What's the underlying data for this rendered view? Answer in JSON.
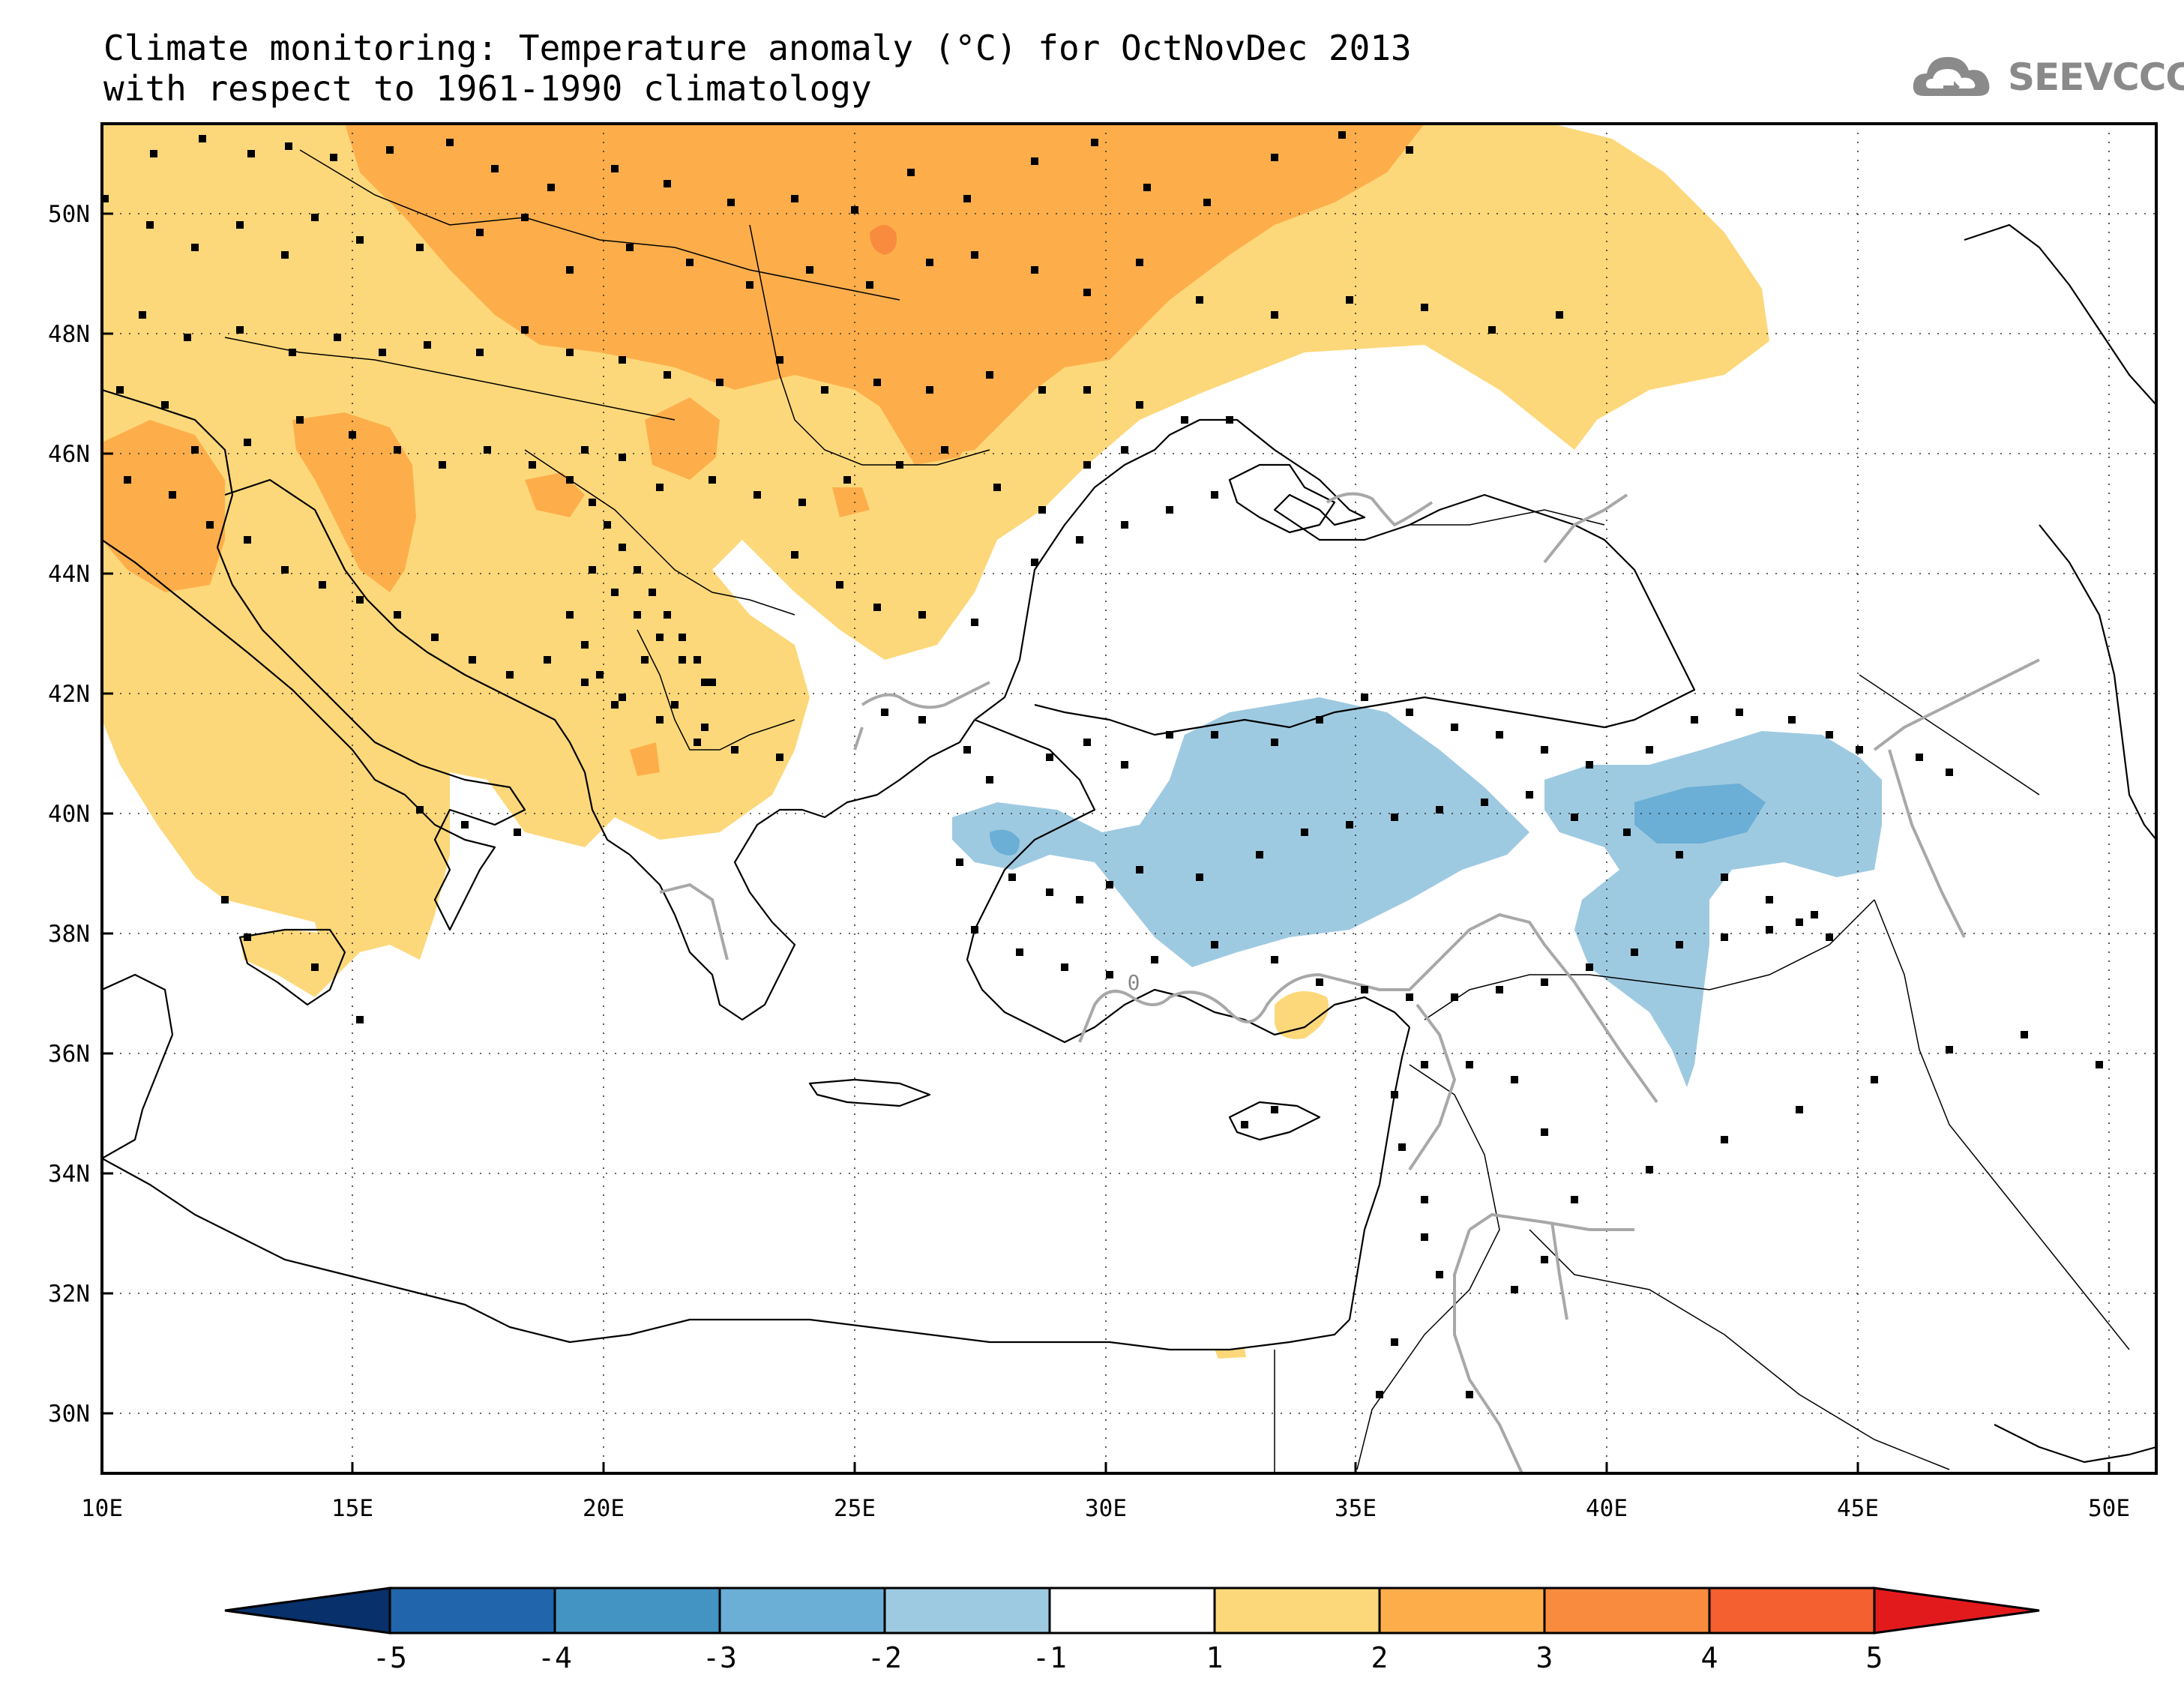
{
  "title": {
    "line1": "Climate monitoring: Temperature anomaly (°C) for OctNovDec 2013",
    "line2": "with respect to 1961-1990 climatology"
  },
  "logo": {
    "text": "SEEVCCC",
    "icon": "cloud-icon",
    "color": "#8a8a8a"
  },
  "map": {
    "lon_range": [
      10,
      51
    ],
    "lat_range": [
      29,
      51.5
    ],
    "x_ticks": [
      "10E",
      "15E",
      "20E",
      "25E",
      "30E",
      "35E",
      "40E",
      "45E",
      "50E"
    ],
    "x_tick_values": [
      10,
      15,
      20,
      25,
      30,
      35,
      40,
      45,
      50
    ],
    "y_ticks": [
      "30N",
      "32N",
      "34N",
      "36N",
      "38N",
      "40N",
      "42N",
      "44N",
      "46N",
      "48N",
      "50N"
    ],
    "y_tick_values": [
      30,
      32,
      34,
      36,
      38,
      40,
      42,
      44,
      46,
      48,
      50
    ],
    "contour_label": "0",
    "grid": "dotted"
  },
  "colorbar": {
    "labels": [
      "-5",
      "-4",
      "-3",
      "-2",
      "-1",
      "1",
      "2",
      "3",
      "4",
      "5"
    ],
    "colors": [
      "#08306b",
      "#2166ac",
      "#4393c3",
      "#6baed6",
      "#9ecae1",
      "#ffffff",
      "#fdd87a",
      "#fdae4b",
      "#f98b3e",
      "#f4602f",
      "#e31a1c"
    ],
    "arrow_left_color": "#08306b",
    "arrow_right_color": "#e31a1c"
  },
  "legend_colors": {
    "anom_1_2": "#fdd87a",
    "anom_2_3": "#fdae4b",
    "anom_3_4": "#f98b3e",
    "anom_m1_m2": "#9ecae1",
    "anom_m2_m3": "#6baed6",
    "zero_contour": "#a8a8a8"
  }
}
